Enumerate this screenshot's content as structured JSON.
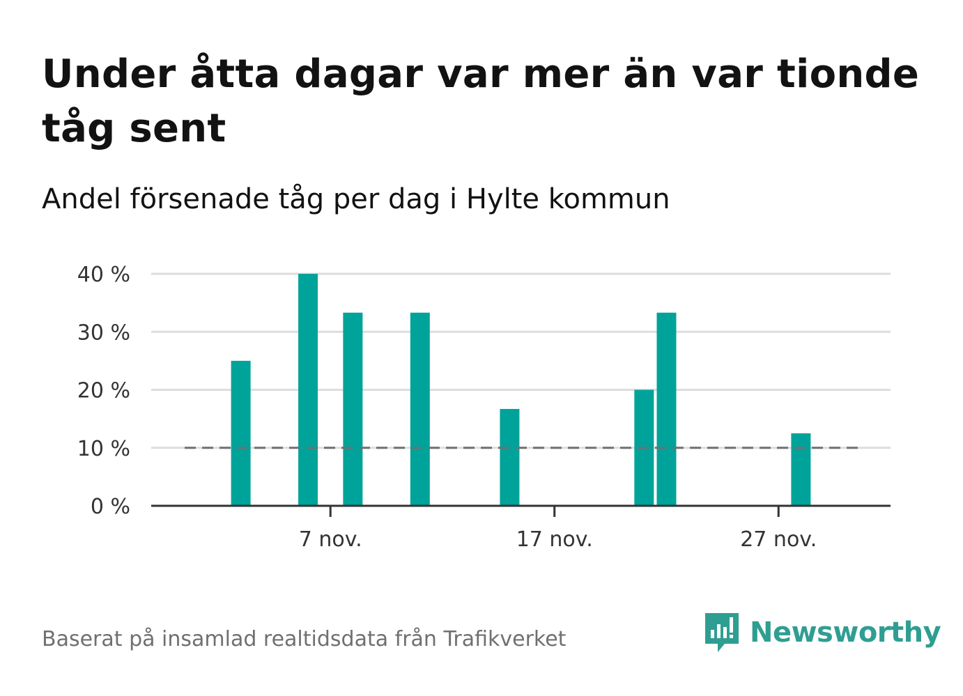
{
  "title": "Under åtta dagar var mer än var tionde tåg sent",
  "subtitle": "Andel försenade tåg per dag i Hylte kommun",
  "source": "Baserat på insamlad realtidsdata från Trafikverket",
  "brand": {
    "name": "Newsworthy",
    "icon": "newsworthy-logo-icon",
    "color": "#2f9e92"
  },
  "colors": {
    "bar": "#00a39a",
    "grid": "#dddddd",
    "axis": "#333333",
    "reference_line": "#707070"
  },
  "chart_data": {
    "type": "bar",
    "title": "Under åtta dagar var mer än var tionde tåg sent",
    "subtitle": "Andel försenade tåg per dag i Hylte kommun",
    "x_type": "date",
    "x_range": [
      "2023-10-30",
      "2023-12-02"
    ],
    "x_ticks": [
      {
        "date": "2023-11-07",
        "label": "7 nov."
      },
      {
        "date": "2023-11-17",
        "label": "17 nov."
      },
      {
        "date": "2023-11-27",
        "label": "27 nov."
      }
    ],
    "ylim": [
      0,
      40
    ],
    "y_ticks": [
      {
        "value": 0,
        "label": "0 %"
      },
      {
        "value": 10,
        "label": "10 %"
      },
      {
        "value": 20,
        "label": "20 %"
      },
      {
        "value": 30,
        "label": "30 %"
      },
      {
        "value": 40,
        "label": "40 %"
      }
    ],
    "grid": true,
    "reference_line": {
      "value": 10,
      "style": "dashed"
    },
    "points": [
      {
        "date": "2023-11-03",
        "value": 25
      },
      {
        "date": "2023-11-06",
        "value": 40
      },
      {
        "date": "2023-11-08",
        "value": 33.3
      },
      {
        "date": "2023-11-11",
        "value": 33.3
      },
      {
        "date": "2023-11-15",
        "value": 16.7
      },
      {
        "date": "2023-11-21",
        "value": 20
      },
      {
        "date": "2023-11-22",
        "value": 33.3
      },
      {
        "date": "2023-11-28",
        "value": 12.5
      }
    ]
  }
}
